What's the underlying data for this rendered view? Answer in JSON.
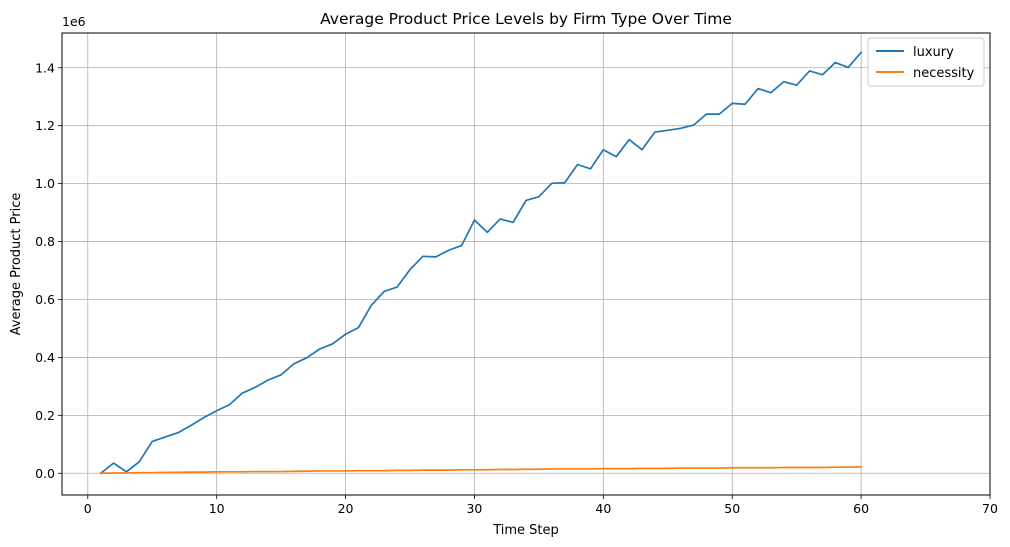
{
  "chart_data": {
    "type": "line",
    "title": "Average Product Price Levels by Firm Type Over Time",
    "xlabel": "Time Step",
    "ylabel": "Average Product Price",
    "y_offset_label": "1e6",
    "xlim": [
      -2,
      70
    ],
    "ylim": [
      -0.075,
      1.52
    ],
    "x_ticks": [
      0,
      10,
      20,
      30,
      40,
      50,
      60,
      70
    ],
    "y_ticks": [
      0.0,
      0.2,
      0.4,
      0.6,
      0.8,
      1.0,
      1.2,
      1.4
    ],
    "y_tick_labels": [
      "0.0",
      "0.2",
      "0.4",
      "0.6",
      "0.8",
      "1.0",
      "1.2",
      "1.4"
    ],
    "grid": true,
    "legend_position": "top-right",
    "x": [
      1,
      2,
      3,
      4,
      5,
      6,
      7,
      8,
      9,
      10,
      11,
      12,
      13,
      14,
      15,
      16,
      17,
      18,
      19,
      20,
      21,
      22,
      23,
      24,
      25,
      26,
      27,
      28,
      29,
      30,
      31,
      32,
      33,
      34,
      35,
      36,
      37,
      38,
      39,
      40,
      41,
      42,
      43,
      44,
      45,
      46,
      47,
      48,
      49,
      50,
      51,
      52,
      53,
      54,
      55,
      56,
      57,
      58,
      59,
      60
    ],
    "series": [
      {
        "name": "luxury",
        "color": "#1f77b4",
        "values": [
          0.0,
          0.035,
          0.005,
          0.04,
          0.11,
          0.125,
          0.14,
          0.165,
          0.192,
          0.216,
          0.237,
          0.277,
          0.297,
          0.322,
          0.34,
          0.378,
          0.399,
          0.429,
          0.447,
          0.48,
          0.503,
          0.58,
          0.628,
          0.643,
          0.703,
          0.749,
          0.747,
          0.77,
          0.786,
          0.874,
          0.832,
          0.878,
          0.866,
          0.942,
          0.955,
          1.001,
          1.003,
          1.066,
          1.051,
          1.117,
          1.093,
          1.152,
          1.117,
          1.178,
          1.184,
          1.191,
          1.202,
          1.24,
          1.24,
          1.277,
          1.274,
          1.328,
          1.314,
          1.352,
          1.34,
          1.389,
          1.376,
          1.418,
          1.401,
          1.453
        ]
      },
      {
        "name": "necessity",
        "color": "#ff7f0e",
        "values": [
          0.0,
          0.001,
          0.001,
          0.002,
          0.002,
          0.003,
          0.003,
          0.004,
          0.004,
          0.005,
          0.005,
          0.005,
          0.006,
          0.006,
          0.006,
          0.007,
          0.007,
          0.008,
          0.008,
          0.008,
          0.009,
          0.009,
          0.009,
          0.01,
          0.01,
          0.011,
          0.011,
          0.011,
          0.012,
          0.012,
          0.012,
          0.013,
          0.013,
          0.014,
          0.014,
          0.015,
          0.015,
          0.015,
          0.015,
          0.016,
          0.016,
          0.016,
          0.017,
          0.017,
          0.017,
          0.018,
          0.018,
          0.018,
          0.018,
          0.019,
          0.019,
          0.019,
          0.019,
          0.02,
          0.02,
          0.02,
          0.02,
          0.021,
          0.021,
          0.022
        ]
      }
    ]
  }
}
